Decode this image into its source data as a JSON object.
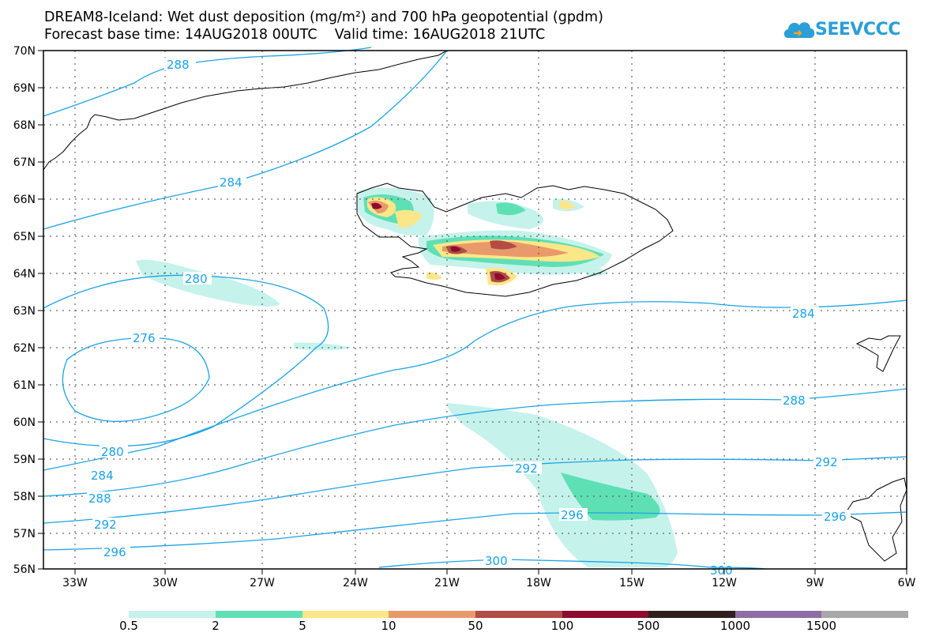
{
  "title": {
    "line1": "DREAM8-Iceland: Wet dust deposition (mg/m²) and 700 hPa geopotential (gpdm)",
    "line2": "Forecast base time: 14AUG2018 00UTC    Valid time: 16AUG2018 21UTC"
  },
  "logo": {
    "text": "SEEVCCC"
  },
  "axes": {
    "lat_labels": [
      "70N",
      "69N",
      "68N",
      "67N",
      "66N",
      "65N",
      "64N",
      "63N",
      "62N",
      "61N",
      "60N",
      "59N",
      "58N",
      "57N",
      "56N"
    ],
    "lon_labels": [
      "33W",
      "30W",
      "27W",
      "24W",
      "21W",
      "18W",
      "15W",
      "12W",
      "9W",
      "6W"
    ]
  },
  "contour_labels": [
    "288",
    "284",
    "280",
    "276",
    "284",
    "288",
    "292",
    "296",
    "280",
    "284",
    "288",
    "292",
    "296",
    "292",
    "296",
    "300",
    "300"
  ],
  "colorbar": {
    "labels": [
      "0.5",
      "2",
      "5",
      "10",
      "50",
      "100",
      "500",
      "1000",
      "1500"
    ],
    "colors": [
      "#c6f2ec",
      "#5fe0b4",
      "#fbe787",
      "#e99a6a",
      "#b24c44",
      "#8e0a2e",
      "#2f1f1f",
      "#8e6ea6",
      "#a8a8a8"
    ]
  },
  "colors": {
    "contour": "#1aa3e8",
    "coast": "#000000"
  }
}
